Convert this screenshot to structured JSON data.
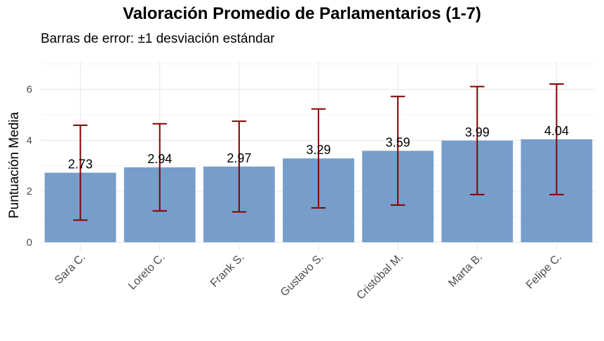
{
  "chart_data": {
    "type": "bar",
    "title": "Valoración Promedio de Parlamentarios (1-7)",
    "subtitle": "Barras de error: ±1 desviación estándar",
    "xlabel": "",
    "ylabel": "Puntuación Media",
    "categories": [
      "Sara C.",
      "Loreto C.",
      "Frank S.",
      "Gustavo S.",
      "Cristóbal M.",
      "Marta B.",
      "Felipe C."
    ],
    "values": [
      2.73,
      2.94,
      2.97,
      3.29,
      3.59,
      3.99,
      4.04
    ],
    "value_labels": [
      "2.73",
      "2.94",
      "2.97",
      "3.29",
      "3.59",
      "3.99",
      "4.04"
    ],
    "error_low": [
      0.87,
      1.23,
      1.19,
      1.35,
      1.46,
      1.87,
      1.87
    ],
    "error_high": [
      4.59,
      4.65,
      4.75,
      5.23,
      5.72,
      6.11,
      6.21
    ],
    "ylim": [
      -0.3,
      7.2
    ],
    "yticks": [
      0,
      2,
      4,
      6
    ],
    "ytick_labels": [
      "0",
      "2",
      "4",
      "6"
    ],
    "bar_color": "#779ECB",
    "error_color": "#800000",
    "grid": true
  }
}
